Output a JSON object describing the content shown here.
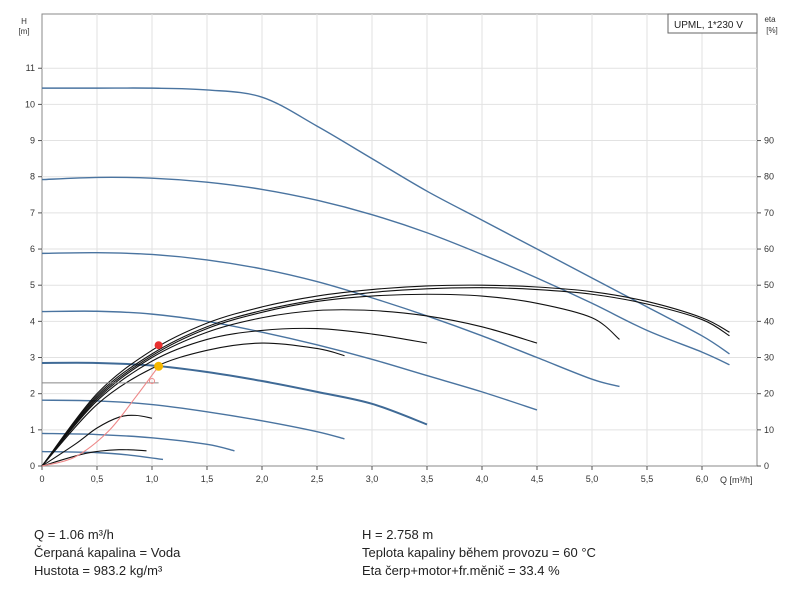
{
  "chart_data": {
    "type": "line",
    "legend": "UPML, 1*230 V",
    "legend_position": "top-right",
    "y_left_label_line1": "H",
    "y_left_label_line2": "[m]",
    "y_right_label_line1": "eta",
    "y_right_label_line2": "[%]",
    "x_label": "Q [m³/h]",
    "xlim": [
      0,
      6.5
    ],
    "ylim": [
      0,
      12.5
    ],
    "y2lim": [
      0,
      125
    ],
    "x_ticks": [
      "0",
      "0,5",
      "1,0",
      "1,5",
      "2,0",
      "2,5",
      "3,0",
      "3,5",
      "4,0",
      "4,5",
      "5,0",
      "5,5",
      "6,0"
    ],
    "x_tick_values": [
      0,
      0.5,
      1.0,
      1.5,
      2.0,
      2.5,
      3.0,
      3.5,
      4.0,
      4.5,
      5.0,
      5.5,
      6.0
    ],
    "y_ticks": [
      "0",
      "1",
      "2",
      "3",
      "4",
      "5",
      "6",
      "7",
      "8",
      "9",
      "10",
      "11"
    ],
    "y_tick_values": [
      0,
      1,
      2,
      3,
      4,
      5,
      6,
      7,
      8,
      9,
      10,
      11
    ],
    "y2_ticks": [
      "0",
      "10",
      "20",
      "30",
      "40",
      "50",
      "60",
      "70",
      "80",
      "90"
    ],
    "y2_tick_values": [
      0,
      10,
      20,
      30,
      40,
      50,
      60,
      70,
      80,
      90
    ],
    "grid": true,
    "head_curves": [
      {
        "color": "#4a74a0",
        "points": [
          [
            0,
            10.45
          ],
          [
            0.5,
            10.45
          ],
          [
            1.0,
            10.45
          ],
          [
            1.5,
            10.4
          ],
          [
            2.0,
            10.2
          ],
          [
            2.5,
            9.4
          ],
          [
            3.0,
            8.5
          ],
          [
            3.5,
            7.6
          ],
          [
            4.0,
            6.8
          ],
          [
            4.5,
            6.0
          ],
          [
            5.0,
            5.2
          ],
          [
            5.5,
            4.4
          ],
          [
            6.0,
            3.6
          ],
          [
            6.25,
            3.1
          ]
        ]
      },
      {
        "color": "#4a74a0",
        "points": [
          [
            0,
            7.92
          ],
          [
            0.5,
            7.98
          ],
          [
            1.0,
            7.96
          ],
          [
            1.5,
            7.85
          ],
          [
            2.0,
            7.65
          ],
          [
            2.5,
            7.35
          ],
          [
            3.0,
            6.95
          ],
          [
            3.5,
            6.45
          ],
          [
            4.0,
            5.85
          ],
          [
            4.5,
            5.2
          ],
          [
            5.0,
            4.5
          ],
          [
            5.5,
            3.75
          ],
          [
            6.0,
            3.15
          ],
          [
            6.25,
            2.8
          ]
        ]
      },
      {
        "color": "#4a74a0",
        "points": [
          [
            0,
            5.88
          ],
          [
            0.5,
            5.9
          ],
          [
            1.0,
            5.85
          ],
          [
            1.5,
            5.7
          ],
          [
            2.0,
            5.45
          ],
          [
            2.5,
            5.1
          ],
          [
            3.0,
            4.65
          ],
          [
            3.5,
            4.15
          ],
          [
            4.0,
            3.6
          ],
          [
            4.5,
            3.0
          ],
          [
            5.0,
            2.4
          ],
          [
            5.25,
            2.2
          ]
        ]
      },
      {
        "color": "#4a74a0",
        "points": [
          [
            0,
            4.27
          ],
          [
            0.5,
            4.28
          ],
          [
            1.0,
            4.2
          ],
          [
            1.5,
            4.0
          ],
          [
            2.0,
            3.7
          ],
          [
            2.5,
            3.35
          ],
          [
            3.0,
            2.95
          ],
          [
            3.5,
            2.5
          ],
          [
            4.0,
            2.05
          ],
          [
            4.5,
            1.55
          ]
        ]
      },
      {
        "color": "#3f6a96",
        "points": [
          [
            0,
            2.85
          ],
          [
            0.5,
            2.85
          ],
          [
            1.0,
            2.78
          ],
          [
            1.5,
            2.6
          ],
          [
            2.0,
            2.35
          ],
          [
            2.5,
            2.05
          ],
          [
            3.0,
            1.72
          ],
          [
            3.5,
            1.15
          ]
        ]
      },
      {
        "color": "#4a74a0",
        "points": [
          [
            0,
            1.82
          ],
          [
            0.5,
            1.8
          ],
          [
            1.0,
            1.7
          ],
          [
            1.5,
            1.5
          ],
          [
            2.0,
            1.25
          ],
          [
            2.5,
            0.95
          ],
          [
            2.75,
            0.75
          ]
        ]
      },
      {
        "color": "#4a74a0",
        "points": [
          [
            0,
            0.9
          ],
          [
            0.5,
            0.87
          ],
          [
            1.0,
            0.78
          ],
          [
            1.5,
            0.6
          ],
          [
            1.75,
            0.42
          ]
        ]
      },
      {
        "color": "#4a74a0",
        "points": [
          [
            0,
            0.4
          ],
          [
            0.5,
            0.37
          ],
          [
            0.8,
            0.3
          ],
          [
            1.1,
            0.18
          ]
        ]
      }
    ],
    "eta_curves": [
      {
        "color": "#111111",
        "points": [
          [
            0,
            0
          ],
          [
            0.5,
            20
          ],
          [
            1.0,
            32
          ],
          [
            1.5,
            39.5
          ],
          [
            2.0,
            44
          ],
          [
            2.5,
            47
          ],
          [
            3.0,
            48.8
          ],
          [
            3.5,
            49.8
          ],
          [
            4.0,
            50
          ],
          [
            4.5,
            49.5
          ],
          [
            5.0,
            48.2
          ],
          [
            5.5,
            45.5
          ],
          [
            6.0,
            41
          ],
          [
            6.25,
            37
          ]
        ]
      },
      {
        "color": "#111111",
        "points": [
          [
            0,
            0
          ],
          [
            0.5,
            19.5
          ],
          [
            1.0,
            31
          ],
          [
            1.5,
            38.5
          ],
          [
            2.0,
            43
          ],
          [
            2.5,
            46
          ],
          [
            3.0,
            48
          ],
          [
            3.5,
            49
          ],
          [
            4.0,
            49.3
          ],
          [
            4.5,
            48.8
          ],
          [
            5.0,
            47.5
          ],
          [
            5.5,
            44.8
          ],
          [
            6.0,
            40.5
          ],
          [
            6.25,
            36
          ]
        ]
      },
      {
        "color": "#111111",
        "points": [
          [
            0,
            0
          ],
          [
            0.5,
            19
          ],
          [
            1.0,
            30.5
          ],
          [
            1.5,
            38
          ],
          [
            2.0,
            42.5
          ],
          [
            2.5,
            45.5
          ],
          [
            3.0,
            47
          ],
          [
            3.5,
            47.5
          ],
          [
            4.0,
            47
          ],
          [
            4.5,
            45
          ],
          [
            5.0,
            41
          ],
          [
            5.25,
            35
          ]
        ]
      },
      {
        "color": "#111111",
        "points": [
          [
            0,
            0
          ],
          [
            0.5,
            18.5
          ],
          [
            1.0,
            30
          ],
          [
            1.5,
            37
          ],
          [
            2.0,
            41
          ],
          [
            2.5,
            43
          ],
          [
            3.0,
            43
          ],
          [
            3.5,
            41.5
          ],
          [
            4.0,
            38.5
          ],
          [
            4.5,
            34
          ]
        ]
      },
      {
        "color": "#111111",
        "points": [
          [
            0,
            0
          ],
          [
            0.5,
            18
          ],
          [
            1.0,
            29
          ],
          [
            1.5,
            35
          ],
          [
            2.0,
            37.5
          ],
          [
            2.5,
            38
          ],
          [
            3.0,
            36.5
          ],
          [
            3.5,
            34
          ]
        ]
      },
      {
        "color": "#111111",
        "points": [
          [
            0,
            0
          ],
          [
            0.5,
            17
          ],
          [
            1.0,
            27
          ],
          [
            1.5,
            32
          ],
          [
            2.0,
            34
          ],
          [
            2.5,
            32.5
          ],
          [
            2.75,
            30.5
          ]
        ]
      },
      {
        "color": "#111111",
        "points": [
          [
            0,
            0
          ],
          [
            0.3,
            6
          ],
          [
            0.5,
            10.5
          ],
          [
            0.7,
            13.5
          ],
          [
            0.85,
            14
          ],
          [
            1.0,
            13.2
          ]
        ]
      },
      {
        "color": "#111111",
        "points": [
          [
            0,
            0
          ],
          [
            0.4,
            3.5
          ],
          [
            0.7,
            4.5
          ],
          [
            0.95,
            4.2
          ]
        ]
      }
    ],
    "system_curve": {
      "color": "#ee8888",
      "points": [
        [
          0,
          0
        ],
        [
          0.3,
          0.25
        ],
        [
          0.6,
          0.95
        ],
        [
          0.85,
          1.9
        ],
        [
          1.06,
          2.758
        ]
      ]
    },
    "operating_point_head": {
      "x": 1.06,
      "y": 2.758,
      "color": "#f5b800"
    },
    "operating_point_eta": {
      "x": 1.06,
      "y2": 33.4,
      "color": "#e83030"
    },
    "reference_line": {
      "y": 2.3,
      "x_end": 1.06,
      "color": "#888888"
    },
    "small_marker": {
      "x": 1.0,
      "y": 2.35,
      "color": "#ee8888"
    }
  },
  "info": {
    "left": [
      "Q = 1.06 m³/h",
      "Čerpaná kapalina = Voda",
      "Hustota = 983.2 kg/m³"
    ],
    "right": [
      "H = 2.758 m",
      "Teplota kapaliny během provozu = 60 °C",
      "Eta čerp+motor+fr.měnič = 33.4 %"
    ]
  }
}
